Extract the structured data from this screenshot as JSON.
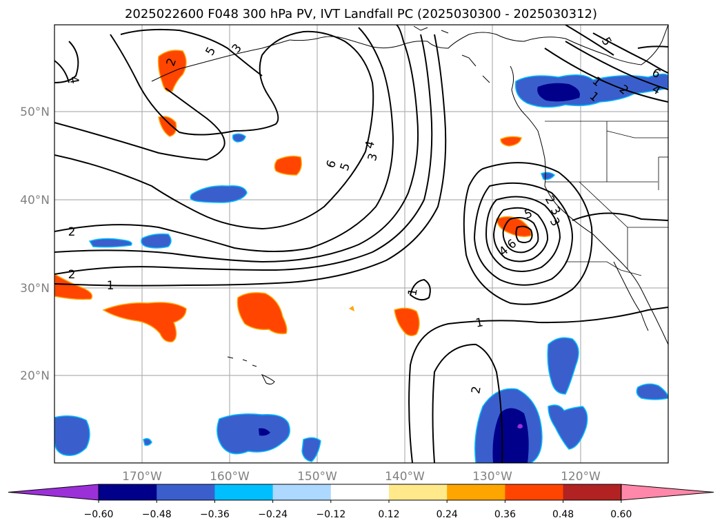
{
  "figure": {
    "title": "2025022600 F048 300 hPa PV, IVT Landfall PC (2025030300 - 2025030312)"
  },
  "map": {
    "lat_ticks": [
      "50°N",
      "40°N",
      "30°N",
      "20°N"
    ],
    "lon_ticks": [
      "170°W",
      "160°W",
      "150°W",
      "140°W",
      "130°W",
      "120°W"
    ],
    "gridlines": true,
    "contour_labels": [
      "5",
      "3",
      "4",
      "2",
      "6",
      "5",
      "4",
      "3",
      "2",
      "2",
      "1",
      "1",
      "1",
      "2",
      "5",
      "2",
      "3",
      "6",
      "4",
      "3",
      "1",
      "5",
      "6",
      "4",
      "1",
      "2"
    ]
  },
  "colorbar": {
    "tick_labels": [
      "−0.60",
      "−0.48",
      "−0.36",
      "−0.24",
      "−0.12",
      "0.12",
      "0.24",
      "0.36",
      "0.48",
      "0.60"
    ],
    "colors": [
      "#9b30d9",
      "#00008b",
      "#3a5fcd",
      "#00bfff",
      "#add8ff",
      "#ffffff",
      "#ffe98a",
      "#ffa500",
      "#ff4500",
      "#b22222",
      "#ff88aa"
    ]
  }
}
